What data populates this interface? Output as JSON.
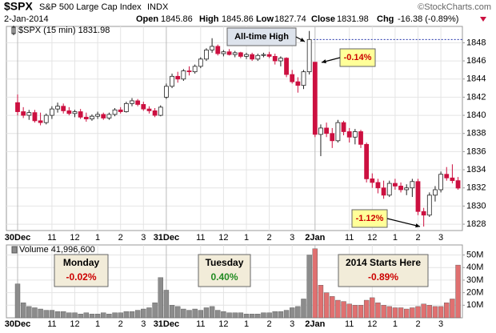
{
  "header": {
    "symbol": "$SPX",
    "name": "S&P 500 Large Cap Index",
    "exchange": "INDX",
    "copyright": "©StockCharts.com",
    "date": "2-Jan-2014",
    "open_label": "Open",
    "open": "1845.86",
    "high_label": "High",
    "high": "1845.86",
    "low_label": "Low",
    "low": "1827.74",
    "close_label": "Close",
    "close": "1831.98",
    "chg_label": "Chg",
    "chg": "-16.38 (-0.89%)"
  },
  "chart_data": {
    "type": "candlestick",
    "legend": "$SPX (15 min) 1831.98",
    "up_color": "#ffffff",
    "down_color": "#cc1040",
    "grid": true,
    "categories": [
      "30Dec",
      null,
      null,
      null,
      null,
      null,
      "11",
      null,
      null,
      null,
      "12",
      null,
      null,
      null,
      "1",
      null,
      null,
      null,
      "2",
      null,
      null,
      null,
      "3",
      null,
      null,
      null,
      "31Dec",
      null,
      null,
      null,
      null,
      null,
      "11",
      null,
      null,
      null,
      "12",
      null,
      null,
      null,
      "1",
      null,
      null,
      null,
      "2",
      null,
      null,
      null,
      "3",
      null,
      null,
      null,
      "2Jan",
      null,
      null,
      null,
      null,
      null,
      "11",
      null,
      null,
      null,
      "12",
      null,
      null,
      null,
      "1",
      null,
      null,
      null,
      "2",
      null,
      null,
      null,
      "3",
      null,
      null,
      null
    ],
    "open": [
      1841.4,
      1840.4,
      1840.0,
      1840.3,
      1839.4,
      1839.2,
      1840.0,
      1840.7,
      1841.0,
      1840.5,
      1840.2,
      1840.4,
      1839.8,
      1839.6,
      1839.9,
      1840.1,
      1839.7,
      1840.1,
      1840.6,
      1840.4,
      1841.3,
      1841.6,
      1841.2,
      1840.7,
      1840.5,
      1840.0,
      1842.0,
      1843.2,
      1844.3,
      1844.0,
      1844.9,
      1844.8,
      1845.4,
      1846.2,
      1847.2,
      1847.6,
      1846.8,
      1847.0,
      1846.7,
      1846.9,
      1846.5,
      1846.7,
      1846.2,
      1846.6,
      1846.7,
      1846.5,
      1846.0,
      1846.3,
      1844.5,
      1843.7,
      1843.3,
      1844.8,
      1845.86,
      1837.9,
      1838.6,
      1838.0,
      1837.2,
      1839.2,
      1838.2,
      1837.6,
      1838.2,
      1836.8,
      1833.0,
      1832.6,
      1832.0,
      1831.2,
      1832.5,
      1832.2,
      1831.8,
      1832.0,
      1832.7,
      1829.4,
      1829.0,
      1831.2,
      1831.8,
      1833.5,
      1833.1,
      1832.8
    ],
    "high": [
      1842.3,
      1840.9,
      1840.6,
      1840.6,
      1840.3,
      1840.2,
      1841.0,
      1841.4,
      1841.3,
      1840.9,
      1840.6,
      1840.7,
      1840.3,
      1840.1,
      1840.4,
      1840.3,
      1840.3,
      1840.8,
      1840.9,
      1841.5,
      1841.9,
      1841.8,
      1841.5,
      1841.0,
      1840.8,
      1841.1,
      1843.5,
      1844.6,
      1844.8,
      1845.1,
      1845.4,
      1845.6,
      1846.4,
      1847.4,
      1848.5,
      1847.8,
      1847.2,
      1847.3,
      1847.1,
      1847.0,
      1846.9,
      1846.9,
      1846.8,
      1846.9,
      1847.0,
      1846.8,
      1846.5,
      1846.4,
      1845.0,
      1844.2,
      1845.0,
      1849.3,
      1845.86,
      1839.0,
      1839.2,
      1838.6,
      1839.5,
      1839.4,
      1838.6,
      1838.5,
      1838.4,
      1837.0,
      1833.6,
      1833.0,
      1832.8,
      1832.8,
      1833.0,
      1832.6,
      1832.4,
      1833.0,
      1833.0,
      1829.8,
      1831.5,
      1832.2,
      1833.8,
      1834.3,
      1834.6,
      1833.2
    ],
    "low": [
      1840.0,
      1839.7,
      1839.5,
      1839.2,
      1838.9,
      1839.0,
      1839.6,
      1840.3,
      1840.2,
      1840.0,
      1839.8,
      1839.6,
      1839.3,
      1839.4,
      1839.6,
      1839.5,
      1839.5,
      1839.9,
      1840.2,
      1840.3,
      1841.0,
      1841.0,
      1840.5,
      1840.2,
      1839.8,
      1839.9,
      1841.8,
      1843.0,
      1843.6,
      1843.8,
      1844.4,
      1844.6,
      1845.2,
      1846.0,
      1846.9,
      1846.6,
      1846.5,
      1846.6,
      1846.4,
      1846.3,
      1846.2,
      1846.0,
      1846.0,
      1846.4,
      1846.3,
      1845.6,
      1845.4,
      1844.2,
      1843.5,
      1842.5,
      1842.9,
      1844.5,
      1837.6,
      1835.5,
      1837.6,
      1836.4,
      1837.0,
      1837.8,
      1837.0,
      1836.8,
      1836.4,
      1832.6,
      1832.0,
      1831.4,
      1830.8,
      1831.0,
      1831.8,
      1831.5,
      1831.2,
      1831.0,
      1829.0,
      1827.74,
      1828.8,
      1830.5,
      1831.5,
      1832.8,
      1832.5,
      1831.8
    ],
    "close": [
      1840.4,
      1840.0,
      1840.3,
      1839.4,
      1839.2,
      1840.0,
      1840.7,
      1841.0,
      1840.5,
      1840.2,
      1840.4,
      1839.8,
      1839.6,
      1839.9,
      1840.1,
      1839.7,
      1840.1,
      1840.6,
      1840.4,
      1841.3,
      1841.6,
      1841.2,
      1840.7,
      1840.5,
      1840.0,
      1840.9,
      1843.2,
      1844.3,
      1844.0,
      1844.9,
      1844.8,
      1845.4,
      1846.2,
      1847.2,
      1847.6,
      1846.8,
      1847.0,
      1846.7,
      1846.9,
      1846.5,
      1846.7,
      1846.2,
      1846.6,
      1846.7,
      1846.5,
      1846.0,
      1846.3,
      1844.5,
      1843.7,
      1843.3,
      1844.8,
      1848.36,
      1837.9,
      1838.6,
      1838.0,
      1837.2,
      1839.2,
      1838.2,
      1837.6,
      1838.2,
      1836.8,
      1833.0,
      1832.6,
      1832.0,
      1831.2,
      1832.5,
      1832.2,
      1831.8,
      1832.0,
      1832.7,
      1829.4,
      1829.0,
      1831.2,
      1831.8,
      1833.5,
      1833.1,
      1832.8,
      1831.98
    ],
    "ylim": [
      1827.3,
      1849.8
    ],
    "yticks": [
      1828,
      1830,
      1832,
      1834,
      1836,
      1838,
      1840,
      1842,
      1844,
      1846,
      1848
    ],
    "annotations": [
      "All-time High",
      "-0.14%",
      "-1.12%"
    ],
    "volume": {
      "legend": "Volume 41,996,600",
      "values": [
        27000000,
        12000000,
        9000000,
        8000000,
        7000000,
        6000000,
        6000000,
        5000000,
        5000000,
        4000000,
        4000000,
        3000000,
        4000000,
        3000000,
        3000000,
        4000000,
        3000000,
        4000000,
        4000000,
        5000000,
        5000000,
        6000000,
        7000000,
        8000000,
        12000000,
        32000000,
        22000000,
        10000000,
        9000000,
        7000000,
        6000000,
        7000000,
        6000000,
        8000000,
        9000000,
        6000000,
        5000000,
        4000000,
        4000000,
        4000000,
        3000000,
        3000000,
        3000000,
        4000000,
        4000000,
        5000000,
        5000000,
        6000000,
        8000000,
        9000000,
        15000000,
        50000000,
        55000000,
        26000000,
        20000000,
        17000000,
        14000000,
        13000000,
        11000000,
        10000000,
        10000000,
        14000000,
        16000000,
        12000000,
        10000000,
        9000000,
        8000000,
        8000000,
        7000000,
        8000000,
        9000000,
        11000000,
        10000000,
        9000000,
        9000000,
        12000000,
        15000000,
        41996600
      ],
      "colors": [
        "#8c8c8c",
        "#8c8c8c",
        "#8c8c8c",
        "#8c8c8c",
        "#8c8c8c",
        "#8c8c8c",
        "#8c8c8c",
        "#8c8c8c",
        "#8c8c8c",
        "#8c8c8c",
        "#8c8c8c",
        "#8c8c8c",
        "#8c8c8c",
        "#8c8c8c",
        "#8c8c8c",
        "#8c8c8c",
        "#8c8c8c",
        "#8c8c8c",
        "#8c8c8c",
        "#8c8c8c",
        "#8c8c8c",
        "#8c8c8c",
        "#8c8c8c",
        "#8c8c8c",
        "#8c8c8c",
        "#8c8c8c",
        "#8c8c8c",
        "#8c8c8c",
        "#8c8c8c",
        "#8c8c8c",
        "#8c8c8c",
        "#8c8c8c",
        "#8c8c8c",
        "#8c8c8c",
        "#8c8c8c",
        "#8c8c8c",
        "#8c8c8c",
        "#8c8c8c",
        "#8c8c8c",
        "#8c8c8c",
        "#8c8c8c",
        "#8c8c8c",
        "#8c8c8c",
        "#8c8c8c",
        "#8c8c8c",
        "#8c8c8c",
        "#8c8c8c",
        "#8c8c8c",
        "#8c8c8c",
        "#8c8c8c",
        "#8c8c8c",
        "#8c8c8c",
        "#e07070",
        "#e07070",
        "#e07070",
        "#e07070",
        "#e07070",
        "#e07070",
        "#e07070",
        "#e07070",
        "#e07070",
        "#e07070",
        "#e07070",
        "#e07070",
        "#e07070",
        "#e07070",
        "#e07070",
        "#e07070",
        "#e07070",
        "#e07070",
        "#e07070",
        "#e07070",
        "#e07070",
        "#e07070",
        "#e07070",
        "#e07070",
        "#e07070",
        "#e07070"
      ],
      "ylim": [
        0,
        58000000
      ],
      "yticks": [
        {
          "value": 10000000,
          "label": "10M"
        },
        {
          "value": 20000000,
          "label": "20M"
        },
        {
          "value": 30000000,
          "label": "30M"
        },
        {
          "value": 40000000,
          "label": "40M"
        },
        {
          "value": 50000000,
          "label": "50M"
        }
      ],
      "annotations": [
        {
          "title": "Monday",
          "change": "-0.02%",
          "color": "#cc0000"
        },
        {
          "title": "Tuesday",
          "change": "0.40%",
          "color": "#228b22"
        },
        {
          "title": "2014 Starts Here",
          "change": "-0.89%",
          "color": "#cc0000"
        }
      ]
    }
  }
}
